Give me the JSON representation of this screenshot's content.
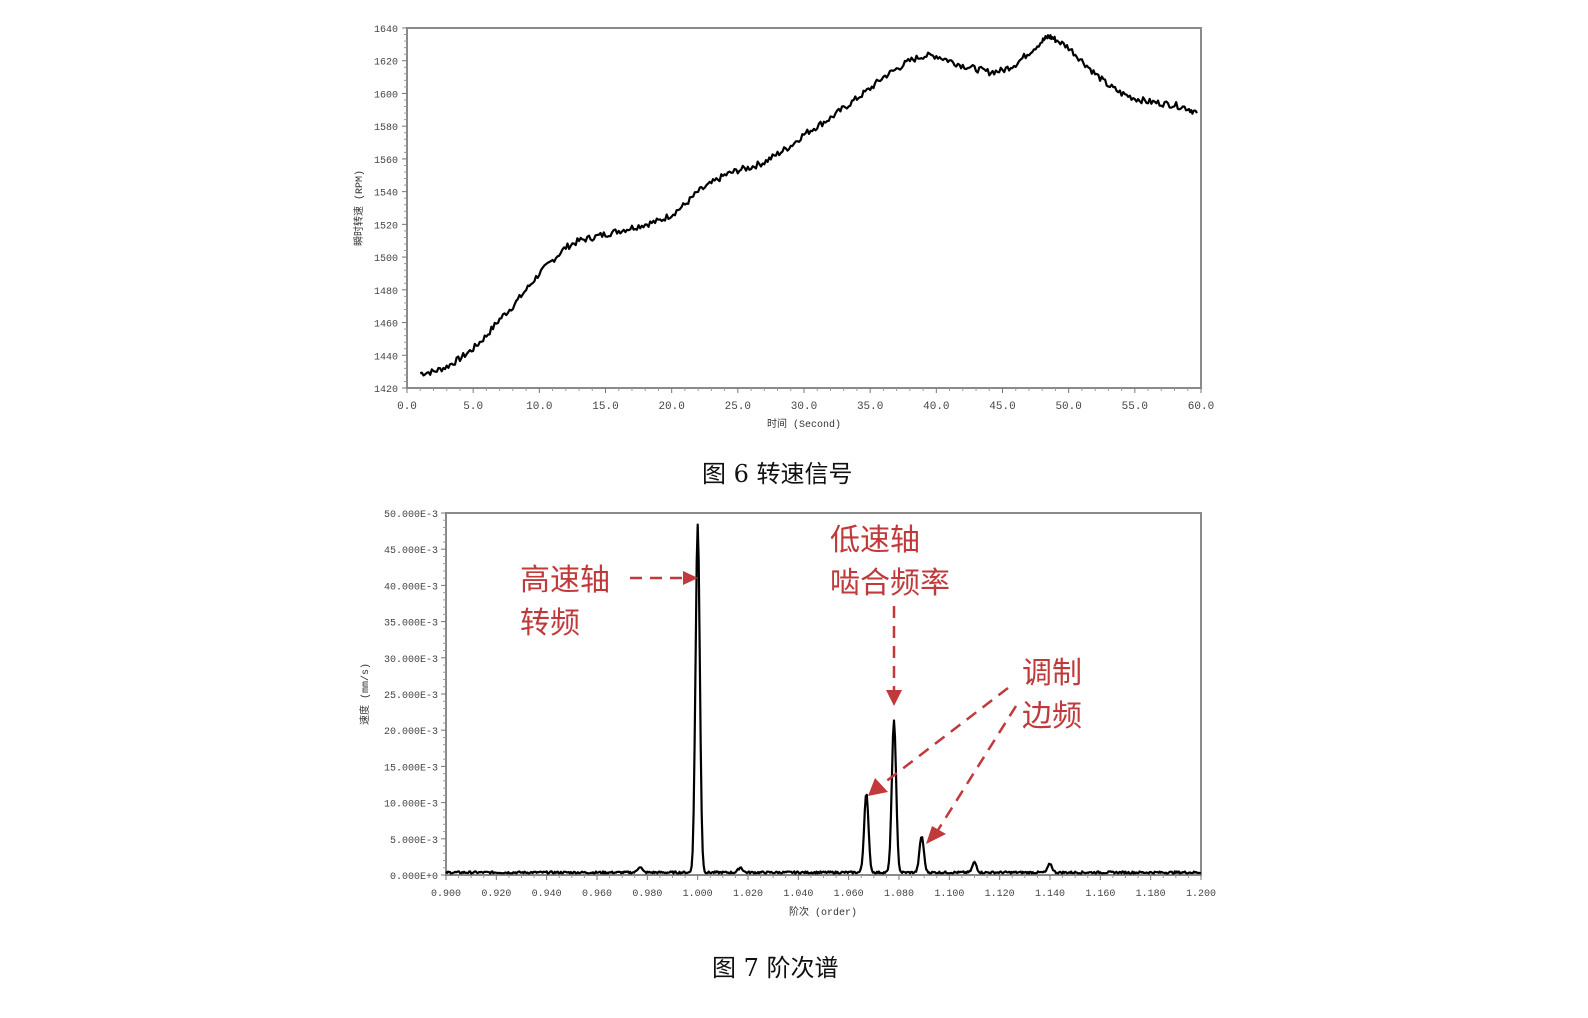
{
  "figures": [
    {
      "caption": "图 6 转速信号"
    },
    {
      "caption": "图 7 阶次谱"
    }
  ],
  "chart_data": [
    {
      "type": "line",
      "title": "图 6 转速信号",
      "xlabel": "时间 (Second)",
      "ylabel": "瞬时转速 (RPM)",
      "xlim": [
        0,
        60
      ],
      "ylim": [
        1420,
        1640
      ],
      "x_ticks": [
        "0.0",
        "5.0",
        "10.0",
        "15.0",
        "20.0",
        "25.0",
        "30.0",
        "35.0",
        "40.0",
        "45.0",
        "50.0",
        "55.0",
        "60.0"
      ],
      "y_ticks": [
        "1420",
        "1440",
        "1460",
        "1480",
        "1500",
        "1520",
        "1540",
        "1560",
        "1580",
        "1600",
        "1620",
        "1640"
      ],
      "grid": false,
      "series": [
        {
          "name": "转速",
          "color": "#000000",
          "x": [
            1.0,
            2.0,
            3.0,
            4.0,
            5.0,
            6.0,
            7.0,
            8.0,
            9.0,
            10.0,
            11.0,
            12.0,
            13.0,
            14.0,
            15.0,
            16.0,
            17.0,
            18.0,
            19.0,
            20.0,
            21.0,
            22.0,
            23.0,
            24.0,
            25.0,
            26.0,
            27.0,
            28.0,
            29.0,
            30.0,
            31.0,
            32.0,
            33.0,
            34.0,
            35.0,
            36.0,
            37.0,
            38.0,
            39.0,
            40.0,
            41.0,
            42.0,
            43.0,
            44.0,
            45.0,
            46.0,
            47.0,
            48.0,
            48.5,
            49.0,
            50.0,
            51.0,
            52.0,
            53.0,
            54.0,
            55.0,
            56.0,
            57.0,
            58.0,
            59.0,
            59.7
          ],
          "values": [
            1429,
            1430,
            1433,
            1438,
            1444,
            1452,
            1462,
            1470,
            1480,
            1490,
            1498,
            1506,
            1510,
            1512,
            1514,
            1516,
            1518,
            1520,
            1522,
            1526,
            1532,
            1540,
            1545,
            1550,
            1553,
            1555,
            1558,
            1563,
            1568,
            1575,
            1580,
            1585,
            1591,
            1597,
            1603,
            1610,
            1615,
            1620,
            1623,
            1623,
            1620,
            1617,
            1615,
            1613,
            1614,
            1618,
            1625,
            1632,
            1635,
            1633,
            1628,
            1620,
            1612,
            1605,
            1600,
            1597,
            1595,
            1594,
            1593,
            1591,
            1588
          ]
        }
      ]
    },
    {
      "type": "line",
      "title": "图 7 阶次谱",
      "xlabel": "阶次 (order)",
      "ylabel": "速度 (mm/s)",
      "xlim": [
        0.9,
        1.2
      ],
      "ylim": [
        0,
        0.05
      ],
      "x_ticks": [
        "0.900",
        "0.920",
        "0.940",
        "0.960",
        "0.980",
        "1.000",
        "1.020",
        "1.040",
        "1.060",
        "1.080",
        "1.100",
        "1.120",
        "1.140",
        "1.160",
        "1.180",
        "1.200"
      ],
      "y_ticks": [
        "0.000E+0",
        "5.000E-3",
        "10.000E-3",
        "15.000E-3",
        "20.000E-3",
        "25.000E-3",
        "30.000E-3",
        "35.000E-3",
        "40.000E-3",
        "45.000E-3",
        "50.000E-3"
      ],
      "grid": false,
      "peaks": [
        {
          "order": 0.977,
          "value": 0.0008
        },
        {
          "order": 1.0,
          "value": 0.048,
          "annotation": "高速轴转频"
        },
        {
          "order": 1.017,
          "value": 0.0007
        },
        {
          "order": 1.067,
          "value": 0.011,
          "annotation": "调制边频"
        },
        {
          "order": 1.078,
          "value": 0.021,
          "annotation": "低速轴啮合频率"
        },
        {
          "order": 1.089,
          "value": 0.005,
          "annotation": "调制边频"
        },
        {
          "order": 1.11,
          "value": 0.0014
        },
        {
          "order": 1.14,
          "value": 0.0012
        }
      ],
      "annotations": [
        {
          "text": [
            "高速轴",
            "转频"
          ],
          "color": "#c0393b",
          "target_order": 1.0
        },
        {
          "text": [
            "低速轴",
            "啮合频率"
          ],
          "color": "#c0393b",
          "target_order": 1.078
        },
        {
          "text": [
            "调制",
            "边频"
          ],
          "color": "#c0393b",
          "target_orders": [
            1.067,
            1.089
          ]
        }
      ]
    }
  ]
}
